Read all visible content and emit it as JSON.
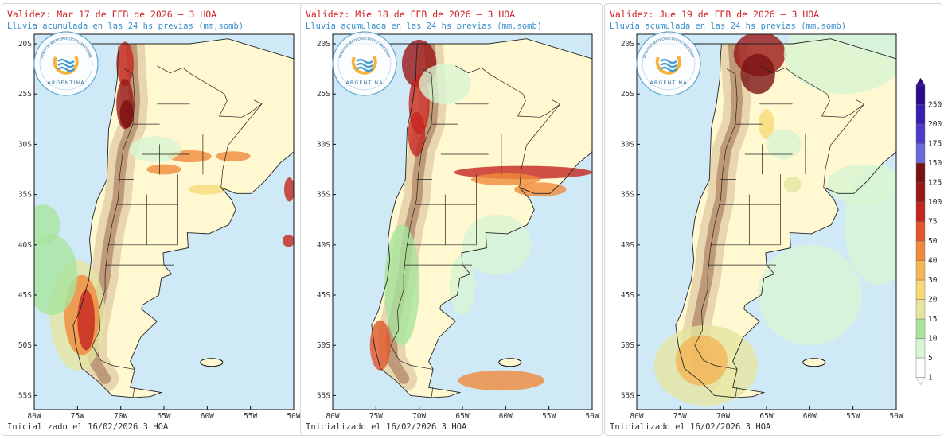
{
  "panels": [
    {
      "title": "Validez: Mar 17 de FEB de 2026 – 3 HOA",
      "subtitle": "Lluvia acumulada en las 24 hs previas (mm,somb)",
      "footer": "Inicializado el 16/02/2026 3 HOA",
      "variant": 0
    },
    {
      "title": "Validez: Mie 18 de FEB de 2026 – 3 HOA",
      "subtitle": "Lluvia acumulada en las 24 hs previas (mm,somb)",
      "footer": "Inicializado el 16/02/2026 3 HOA",
      "variant": 1
    },
    {
      "title": "Validez: Jue 19 de FEB de 2026 – 3 HOA",
      "subtitle": "Lluvia acumulada en las 24 hs previas (mm,somb)",
      "footer": "Inicializado el 16/02/2026 3 HOA",
      "variant": 2
    }
  ],
  "logo": {
    "arc_text": "SERVICIO METEOROLOGICO NACIONAL",
    "name": "ARGENTINA"
  },
  "axes": {
    "lat_labels": [
      "20S",
      "25S",
      "30S",
      "35S",
      "40S",
      "45S",
      "50S",
      "55S"
    ],
    "lon_labels": [
      "80W",
      "75W",
      "70W",
      "65W",
      "60W",
      "55W",
      "50W"
    ]
  },
  "colorbar": {
    "levels": [
      "1",
      "5",
      "10",
      "15",
      "20",
      "30",
      "40",
      "50",
      "75",
      "100",
      "125",
      "150",
      "175",
      "200",
      "250"
    ],
    "colors": [
      "#ffffff",
      "#d8f5d3",
      "#a8e59c",
      "#e5e5a0",
      "#f7d978",
      "#f4b555",
      "#f08a3a",
      "#e0552b",
      "#c4261f",
      "#9a1717",
      "#7a1212",
      "#6a6ad6",
      "#4b3bc8",
      "#3a1fb0",
      "#2a0b8c"
    ]
  },
  "colors": {
    "ocean": "#cfe9f7",
    "land": "#fff8d0",
    "border": "#222222",
    "title_red": "#d21d1d",
    "subtitle_blue": "#3b8fc9"
  }
}
